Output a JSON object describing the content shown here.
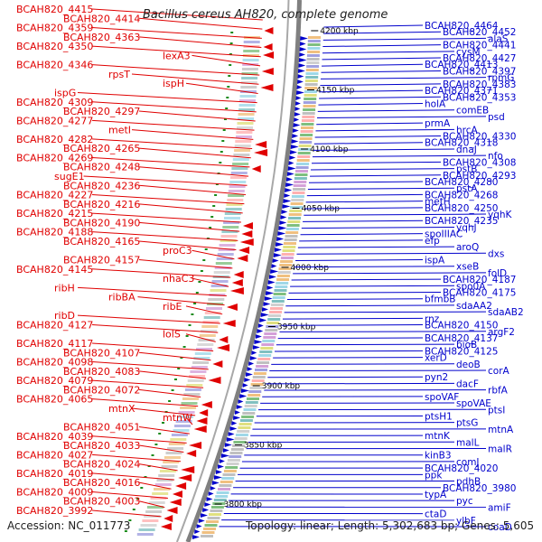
{
  "title": "Bacillus cereus AH820, complete genome",
  "accession_label": "Accession: NC_011773",
  "topology_label": "Topology: linear; Length: 5,302,683 bp; Genes: 5,605",
  "colors": {
    "minus_strand": "#e00000",
    "plus_strand": "#0000cc",
    "backbone": "#808080",
    "tick_green": "#1a8a1a"
  },
  "scale_ticks": [
    "4200 kbp",
    "4150 kbp",
    "4100 kbp",
    "4050 kbp",
    "4000 kbp",
    "3950 kbp",
    "3900 kbp",
    "3850 kbp",
    "3800 kbp"
  ],
  "left_labels": [
    "BCAH820_4415",
    "BCAH820_4414",
    "BCAH820_4359",
    "BCAH820_4363",
    "BCAH820_4350",
    "lexA3",
    "BCAH820_4346",
    "rpsT",
    "ispH",
    "ispG",
    "BCAH820_4309",
    "BCAH820_4297",
    "BCAH820_4277",
    "metI",
    "BCAH820_4282",
    "BCAH820_4265",
    "BCAH820_4269",
    "BCAH820_4248",
    "sugE1",
    "BCAH820_4236",
    "BCAH820_4227",
    "BCAH820_4216",
    "BCAH820_4215",
    "BCAH820_4190",
    "BCAH820_4188",
    "BCAH820_4165",
    "proC3",
    "BCAH820_4157",
    "BCAH820_4145",
    "nhaC3",
    "ribH",
    "ribBA",
    "ribE",
    "ribD",
    "BCAH820_4127",
    "lolS",
    "BCAH820_4117",
    "BCAH820_4107",
    "BCAH820_4098",
    "BCAH820_4083",
    "BCAH820_4079",
    "BCAH820_4072",
    "BCAH820_4065",
    "mtnX",
    "mtnW",
    "BCAH820_4051",
    "BCAH820_4039",
    "BCAH820_4033",
    "BCAH820_4027",
    "BCAH820_4024",
    "BCAH820_4019",
    "BCAH820_4016",
    "BCAH820_4009",
    "BCAH820_4003",
    "BCAH820_3992"
  ],
  "right_labels": [
    "BCAH820_4464",
    "BCAH820_4452",
    "alaS",
    "BCAH820_4441",
    "cysM",
    "BCAH820_4427",
    "BCAH820_4413",
    "BCAH820_4397",
    "rpmG",
    "BCAH820_4383",
    "BCAH820_4371",
    "BCAH820_4353",
    "holA",
    "comEB",
    "psd",
    "prmA",
    "hrcA",
    "BCAH820_4330",
    "BCAH820_4318",
    "dnaJ",
    "nfo",
    "BCAH820_4308",
    "pstB",
    "BCAH820_4293",
    "BCAH820_4280",
    "pstA",
    "BCAH820_4268",
    "metH",
    "BCAH820_4250",
    "yqhK",
    "BCAH820_4235",
    "yqhJ",
    "spoIIIAC",
    "efp",
    "aroQ",
    "dxs",
    "ispA",
    "xseB",
    "folD",
    "BCAH820_4187",
    "spo0A",
    "BCAH820_4175",
    "bfmbB",
    "sdaAA2",
    "sdaAB2",
    "rnz",
    "BCAH820_4150",
    "argF2",
    "BCAH820_4137",
    "bioB",
    "BCAH820_4125",
    "xerD",
    "deoB",
    "corA",
    "pyn2",
    "dacF",
    "rbfA",
    "spoVAF",
    "spoVAE",
    "ptsI",
    "ptsH1",
    "ptsG",
    "mtnA",
    "mtnK",
    "malL",
    "malR",
    "kinB3",
    "comJ",
    "BCAH820_4020",
    "ppk",
    "pdhB",
    "BCAH820_3980",
    "typA",
    "pyc",
    "amiF",
    "ctaD",
    "ylbF",
    "coaD"
  ]
}
